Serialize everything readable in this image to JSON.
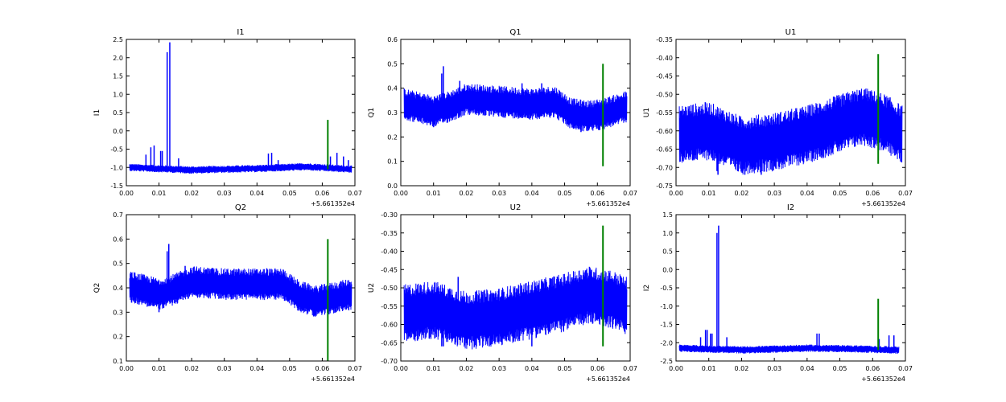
{
  "colors": {
    "series_main": "#0000ff",
    "series_marker": "#008000",
    "axes": "#000000",
    "background": "#ffffff"
  },
  "chart_data": [
    {
      "type": "line",
      "title": "I1",
      "ylabel": "I1",
      "xlabel": "",
      "x_offset_label": "+5.661352e4",
      "xlim": [
        0.0,
        0.07
      ],
      "ylim": [
        -1.5,
        2.5
      ],
      "xticks": [
        "0.00",
        "0.01",
        "0.02",
        "0.03",
        "0.04",
        "0.05",
        "0.06",
        "0.07"
      ],
      "yticks": [
        "-1.5",
        "-1.0",
        "-0.5",
        "0.0",
        "0.5",
        "1.0",
        "1.5",
        "2.0",
        "2.5"
      ],
      "series": [
        {
          "x_range": [
            0.001,
            0.069
          ],
          "baseline": [
            [
              0.001,
              -1.0
            ],
            [
              0.02,
              -1.07
            ],
            [
              0.04,
              -1.03
            ],
            [
              0.055,
              -0.98
            ],
            [
              0.069,
              -1.05
            ]
          ],
          "noise_low": 0.1,
          "noise_high": 0.1,
          "spikes": [
            [
              0.006,
              -0.65
            ],
            [
              0.0075,
              -0.45
            ],
            [
              0.0085,
              -0.4
            ],
            [
              0.0105,
              -0.55
            ],
            [
              0.011,
              -0.55
            ],
            [
              0.0125,
              2.15
            ],
            [
              0.0133,
              2.42
            ],
            [
              0.016,
              -0.75
            ],
            [
              0.0435,
              -0.62
            ],
            [
              0.0445,
              -0.6
            ],
            [
              0.0465,
              -0.8
            ],
            [
              0.0625,
              -0.7
            ],
            [
              0.0645,
              -0.6
            ],
            [
              0.0665,
              -0.7
            ],
            [
              0.068,
              -0.8
            ]
          ],
          "dips": [],
          "marker": {
            "x": 0.0617,
            "y_low": -1.05,
            "y_high": 0.3
          }
        }
      ]
    },
    {
      "type": "line",
      "title": "Q1",
      "ylabel": "Q1",
      "xlabel": "",
      "x_offset_label": "+5.661352e4",
      "xlim": [
        0.0,
        0.07
      ],
      "ylim": [
        0.0,
        0.6
      ],
      "xticks": [
        "0.00",
        "0.01",
        "0.02",
        "0.03",
        "0.04",
        "0.05",
        "0.06",
        "0.07"
      ],
      "yticks": [
        "0.0",
        "0.1",
        "0.2",
        "0.3",
        "0.4",
        "0.5",
        "0.6"
      ],
      "series": [
        {
          "x_range": [
            0.001,
            0.069
          ],
          "baseline": [
            [
              0.001,
              0.33
            ],
            [
              0.01,
              0.3
            ],
            [
              0.015,
              0.32
            ],
            [
              0.02,
              0.35
            ],
            [
              0.03,
              0.34
            ],
            [
              0.04,
              0.33
            ],
            [
              0.047,
              0.34
            ],
            [
              0.052,
              0.29
            ],
            [
              0.057,
              0.28
            ],
            [
              0.062,
              0.29
            ],
            [
              0.069,
              0.32
            ]
          ],
          "noise_low": 0.06,
          "noise_high": 0.07,
          "spikes": [
            [
              0.0125,
              0.46
            ],
            [
              0.013,
              0.49
            ],
            [
              0.018,
              0.43
            ],
            [
              0.037,
              0.42
            ],
            [
              0.043,
              0.42
            ]
          ],
          "dips": [
            [
              0.01,
              0.24
            ],
            [
              0.055,
              0.22
            ]
          ],
          "marker": {
            "x": 0.0617,
            "y_low": 0.08,
            "y_high": 0.5
          }
        }
      ]
    },
    {
      "type": "line",
      "title": "U1",
      "ylabel": "U1",
      "xlabel": "",
      "x_offset_label": "+5.661352e4",
      "xlim": [
        0.0,
        0.07
      ],
      "ylim": [
        -0.75,
        -0.35
      ],
      "xticks": [
        "0.00",
        "0.01",
        "0.02",
        "0.03",
        "0.04",
        "0.05",
        "0.06",
        "0.07"
      ],
      "yticks": [
        "-0.75",
        "-0.70",
        "-0.65",
        "-0.60",
        "-0.55",
        "-0.50",
        "-0.45",
        "-0.40",
        "-0.35"
      ],
      "series": [
        {
          "x_range": [
            0.001,
            0.069
          ],
          "baseline": [
            [
              0.001,
              -0.61
            ],
            [
              0.01,
              -0.6
            ],
            [
              0.02,
              -0.64
            ],
            [
              0.03,
              -0.63
            ],
            [
              0.04,
              -0.61
            ],
            [
              0.05,
              -0.58
            ],
            [
              0.057,
              -0.56
            ],
            [
              0.064,
              -0.58
            ],
            [
              0.069,
              -0.61
            ]
          ],
          "noise_low": 0.08,
          "noise_high": 0.08,
          "spikes": [
            [
              0.052,
              -0.51
            ],
            [
              0.0535,
              -0.5
            ]
          ],
          "dips": [
            [
              0.0128,
              -0.72
            ],
            [
              0.0125,
              -0.71
            ],
            [
              0.021,
              -0.72
            ],
            [
              0.026,
              -0.72
            ]
          ],
          "marker": {
            "x": 0.0617,
            "y_low": -0.69,
            "y_high": -0.39
          }
        }
      ]
    },
    {
      "type": "line",
      "title": "Q2",
      "ylabel": "Q2",
      "xlabel": "",
      "x_offset_label": "+5.661352e4",
      "xlim": [
        0.0,
        0.07
      ],
      "ylim": [
        0.1,
        0.7
      ],
      "xticks": [
        "0.00",
        "0.01",
        "0.02",
        "0.03",
        "0.04",
        "0.05",
        "0.06",
        "0.07"
      ],
      "yticks": [
        "0.1",
        "0.2",
        "0.3",
        "0.4",
        "0.5",
        "0.6",
        "0.7"
      ],
      "series": [
        {
          "x_range": [
            0.001,
            0.069
          ],
          "baseline": [
            [
              0.001,
              0.4
            ],
            [
              0.01,
              0.37
            ],
            [
              0.015,
              0.39
            ],
            [
              0.02,
              0.42
            ],
            [
              0.03,
              0.41
            ],
            [
              0.04,
              0.41
            ],
            [
              0.048,
              0.41
            ],
            [
              0.053,
              0.36
            ],
            [
              0.058,
              0.34
            ],
            [
              0.062,
              0.35
            ],
            [
              0.069,
              0.37
            ]
          ],
          "noise_low": 0.06,
          "noise_high": 0.07,
          "spikes": [
            [
              0.0125,
              0.55
            ],
            [
              0.013,
              0.58
            ],
            [
              0.018,
              0.49
            ],
            [
              0.043,
              0.48
            ]
          ],
          "dips": [
            [
              0.01,
              0.3
            ]
          ],
          "marker": {
            "x": 0.0617,
            "y_low": 0.1,
            "y_high": 0.6
          }
        }
      ]
    },
    {
      "type": "line",
      "title": "U2",
      "ylabel": "U2",
      "xlabel": "",
      "x_offset_label": "+5.661352e4",
      "xlim": [
        0.0,
        0.07
      ],
      "ylim": [
        -0.7,
        -0.3
      ],
      "xticks": [
        "0.00",
        "0.01",
        "0.02",
        "0.03",
        "0.04",
        "0.05",
        "0.06",
        "0.07"
      ],
      "yticks": [
        "-0.70",
        "-0.65",
        "-0.60",
        "-0.55",
        "-0.50",
        "-0.45",
        "-0.40",
        "-0.35",
        "-0.30"
      ],
      "series": [
        {
          "x_range": [
            0.001,
            0.069
          ],
          "baseline": [
            [
              0.001,
              -0.57
            ],
            [
              0.01,
              -0.56
            ],
            [
              0.02,
              -0.59
            ],
            [
              0.03,
              -0.58
            ],
            [
              0.04,
              -0.56
            ],
            [
              0.05,
              -0.54
            ],
            [
              0.057,
              -0.52
            ],
            [
              0.064,
              -0.53
            ],
            [
              0.069,
              -0.55
            ]
          ],
          "noise_low": 0.08,
          "noise_high": 0.08,
          "spikes": [
            [
              0.0175,
              -0.47
            ]
          ],
          "dips": [
            [
              0.0125,
              -0.66
            ],
            [
              0.013,
              -0.66
            ],
            [
              0.027,
              -0.66
            ],
            [
              0.04,
              -0.66
            ]
          ],
          "marker": {
            "x": 0.0617,
            "y_low": -0.66,
            "y_high": -0.33
          }
        }
      ]
    },
    {
      "type": "line",
      "title": "I2",
      "ylabel": "I2",
      "xlabel": "",
      "x_offset_label": "+5.661352e4",
      "xlim": [
        0.0,
        0.07
      ],
      "ylim": [
        -2.5,
        1.5
      ],
      "xticks": [
        "0.00",
        "0.01",
        "0.02",
        "0.03",
        "0.04",
        "0.05",
        "0.06",
        "0.07"
      ],
      "yticks": [
        "-2.5",
        "-2.0",
        "-1.5",
        "-1.0",
        "-0.5",
        "0.0",
        "0.5",
        "1.0",
        "1.5"
      ],
      "series": [
        {
          "x_range": [
            0.001,
            0.068
          ],
          "baseline": [
            [
              0.001,
              -2.15
            ],
            [
              0.02,
              -2.2
            ],
            [
              0.04,
              -2.15
            ],
            [
              0.055,
              -2.17
            ],
            [
              0.068,
              -2.2
            ]
          ],
          "noise_low": 0.1,
          "noise_high": 0.1,
          "spikes": [
            [
              0.0075,
              -1.85
            ],
            [
              0.009,
              -1.65
            ],
            [
              0.0095,
              -1.65
            ],
            [
              0.0105,
              -1.75
            ],
            [
              0.011,
              -1.75
            ],
            [
              0.0125,
              1.0
            ],
            [
              0.013,
              1.2
            ],
            [
              0.0155,
              -1.85
            ],
            [
              0.043,
              -1.75
            ],
            [
              0.0437,
              -1.75
            ],
            [
              0.065,
              -1.8
            ],
            [
              0.0665,
              -1.8
            ],
            [
              0.062,
              -1.9
            ]
          ],
          "dips": [],
          "marker": {
            "x": 0.0617,
            "y_low": -2.2,
            "y_high": -0.8
          }
        }
      ]
    }
  ]
}
